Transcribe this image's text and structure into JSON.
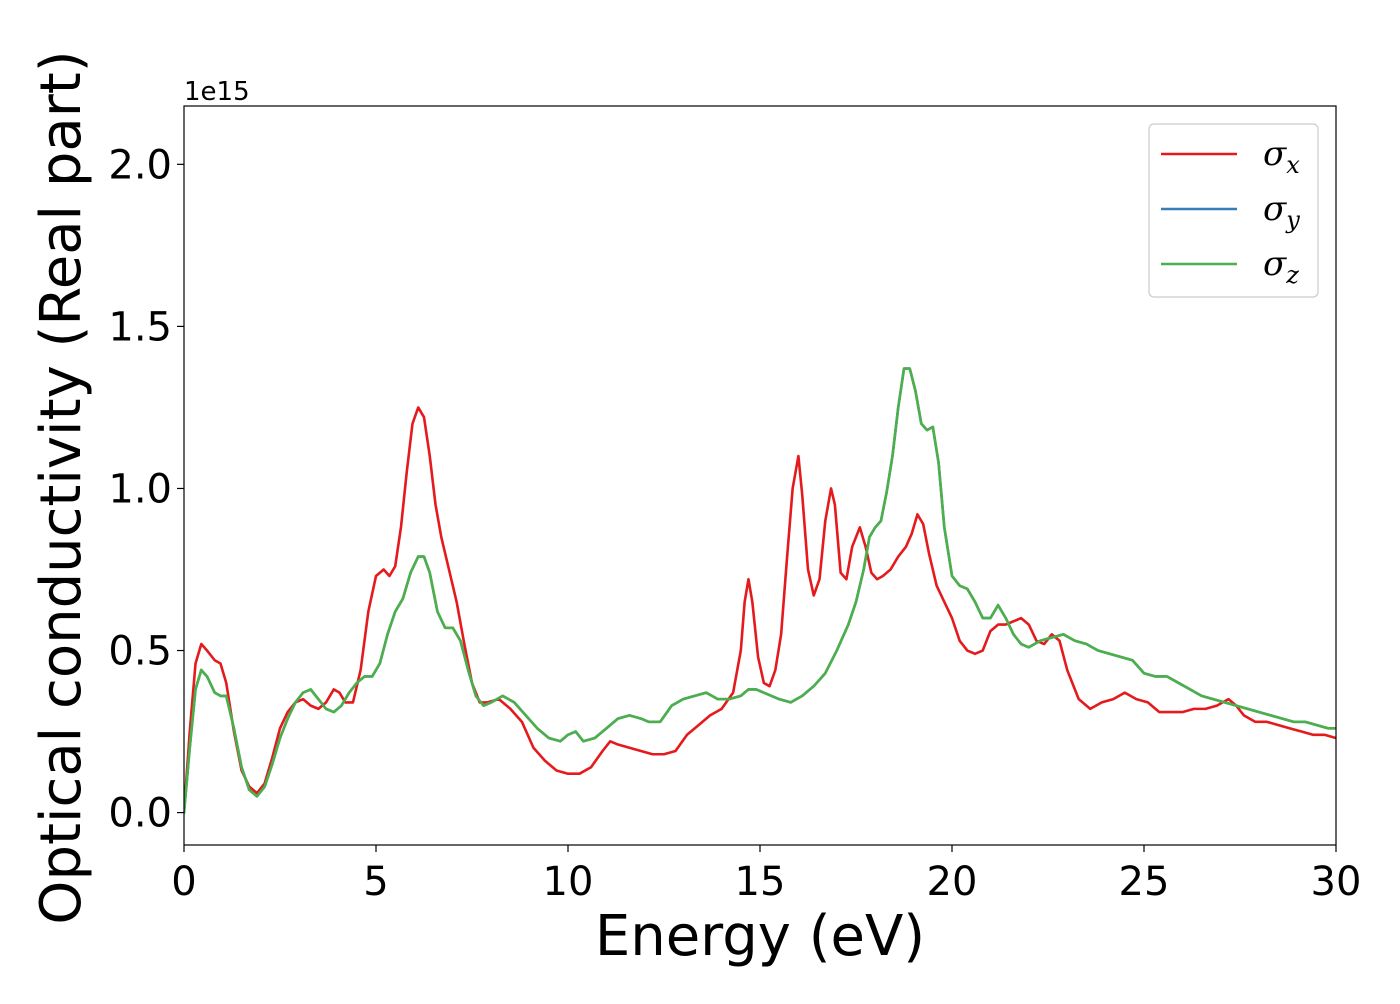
{
  "chart_data": {
    "type": "line",
    "xlabel": "Energy (eV)",
    "ylabel": "Optical conductivity (Real part)",
    "y_offset_label": "1e15",
    "xlim": [
      0,
      30
    ],
    "ylim": [
      -0.1,
      2.18
    ],
    "x_ticks": [
      0,
      5,
      10,
      15,
      20,
      25,
      30
    ],
    "x_tick_labels": [
      "0",
      "5",
      "10",
      "15",
      "20",
      "25",
      "30"
    ],
    "y_ticks": [
      0.0,
      0.5,
      1.0,
      1.5,
      2.0
    ],
    "y_tick_labels": [
      "0.0",
      "0.5",
      "1.0",
      "1.5",
      "2.0"
    ],
    "grid": false,
    "legend_position": "top-right",
    "series": [
      {
        "name": "σx",
        "legend_symbol": "σ",
        "legend_subscript": "x",
        "color": "#e41a1c",
        "x": [
          0,
          0.15,
          0.3,
          0.45,
          0.6,
          0.8,
          0.95,
          1.1,
          1.3,
          1.5,
          1.7,
          1.9,
          2.1,
          2.3,
          2.5,
          2.7,
          2.9,
          3.1,
          3.3,
          3.5,
          3.7,
          3.9,
          4.05,
          4.2,
          4.4,
          4.6,
          4.8,
          5.0,
          5.2,
          5.35,
          5.5,
          5.65,
          5.8,
          5.95,
          6.1,
          6.25,
          6.4,
          6.55,
          6.7,
          6.9,
          7.1,
          7.3,
          7.5,
          7.7,
          7.9,
          8.2,
          8.5,
          8.8,
          9.1,
          9.4,
          9.7,
          10.0,
          10.3,
          10.6,
          10.9,
          11.1,
          11.3,
          11.6,
          11.9,
          12.2,
          12.5,
          12.8,
          13.1,
          13.4,
          13.7,
          14.0,
          14.3,
          14.5,
          14.6,
          14.7,
          14.8,
          14.95,
          15.1,
          15.25,
          15.4,
          15.55,
          15.7,
          15.85,
          16.0,
          16.1,
          16.25,
          16.4,
          16.55,
          16.7,
          16.85,
          16.95,
          17.1,
          17.25,
          17.4,
          17.6,
          17.75,
          17.9,
          18.05,
          18.2,
          18.4,
          18.6,
          18.8,
          18.95,
          19.1,
          19.25,
          19.4,
          19.6,
          19.8,
          20.0,
          20.2,
          20.4,
          20.6,
          20.8,
          21.0,
          21.2,
          21.4,
          21.6,
          21.8,
          22.0,
          22.2,
          22.4,
          22.6,
          22.8,
          23.0,
          23.3,
          23.6,
          23.9,
          24.2,
          24.5,
          24.8,
          25.1,
          25.4,
          25.7,
          26.0,
          26.3,
          26.6,
          26.9,
          27.2,
          27.4,
          27.6,
          27.9,
          28.2,
          28.5,
          28.8,
          29.1,
          29.4,
          29.7,
          30.0
        ],
        "y": [
          0.0,
          0.25,
          0.46,
          0.52,
          0.5,
          0.47,
          0.46,
          0.4,
          0.25,
          0.13,
          0.08,
          0.06,
          0.09,
          0.17,
          0.26,
          0.31,
          0.34,
          0.35,
          0.33,
          0.32,
          0.34,
          0.38,
          0.37,
          0.34,
          0.34,
          0.44,
          0.62,
          0.73,
          0.75,
          0.73,
          0.76,
          0.88,
          1.05,
          1.2,
          1.25,
          1.22,
          1.1,
          0.95,
          0.85,
          0.75,
          0.65,
          0.52,
          0.4,
          0.34,
          0.34,
          0.35,
          0.32,
          0.28,
          0.2,
          0.16,
          0.13,
          0.12,
          0.12,
          0.14,
          0.19,
          0.22,
          0.21,
          0.2,
          0.19,
          0.18,
          0.18,
          0.19,
          0.24,
          0.27,
          0.3,
          0.32,
          0.37,
          0.5,
          0.65,
          0.72,
          0.65,
          0.48,
          0.4,
          0.39,
          0.44,
          0.55,
          0.78,
          1.0,
          1.1,
          0.98,
          0.75,
          0.67,
          0.72,
          0.9,
          1.0,
          0.95,
          0.74,
          0.72,
          0.82,
          0.88,
          0.82,
          0.74,
          0.72,
          0.73,
          0.75,
          0.79,
          0.82,
          0.86,
          0.92,
          0.89,
          0.8,
          0.7,
          0.65,
          0.6,
          0.53,
          0.5,
          0.49,
          0.5,
          0.56,
          0.58,
          0.58,
          0.59,
          0.6,
          0.58,
          0.53,
          0.52,
          0.55,
          0.53,
          0.44,
          0.35,
          0.32,
          0.34,
          0.35,
          0.37,
          0.35,
          0.34,
          0.31,
          0.31,
          0.31,
          0.32,
          0.32,
          0.33,
          0.35,
          0.33,
          0.3,
          0.28,
          0.28,
          0.27,
          0.26,
          0.25,
          0.24,
          0.24,
          0.23
        ]
      },
      {
        "name": "σy",
        "legend_symbol": "σ",
        "legend_subscript": "y",
        "color": "#377eb8",
        "x": [
          0,
          0.15,
          0.3,
          0.45,
          0.6,
          0.8,
          0.95,
          1.1,
          1.3,
          1.5,
          1.7,
          1.9,
          2.1,
          2.3,
          2.5,
          2.7,
          2.9,
          3.1,
          3.3,
          3.5,
          3.7,
          3.9,
          4.1,
          4.3,
          4.5,
          4.7,
          4.9,
          5.1,
          5.3,
          5.5,
          5.7,
          5.9,
          6.1,
          6.25,
          6.4,
          6.6,
          6.8,
          7.0,
          7.2,
          7.4,
          7.6,
          7.8,
          8.0,
          8.3,
          8.6,
          8.9,
          9.2,
          9.5,
          9.8,
          10.0,
          10.2,
          10.4,
          10.7,
          11.0,
          11.3,
          11.6,
          11.9,
          12.1,
          12.4,
          12.7,
          13.0,
          13.3,
          13.6,
          13.9,
          14.2,
          14.5,
          14.7,
          14.9,
          15.1,
          15.3,
          15.5,
          15.8,
          16.1,
          16.4,
          16.7,
          17.0,
          17.3,
          17.5,
          17.7,
          17.85,
          18.0,
          18.15,
          18.3,
          18.45,
          18.6,
          18.75,
          18.9,
          19.05,
          19.2,
          19.35,
          19.5,
          19.65,
          19.8,
          20.0,
          20.2,
          20.4,
          20.6,
          20.8,
          21.0,
          21.2,
          21.4,
          21.6,
          21.8,
          22.0,
          22.3,
          22.6,
          22.9,
          23.2,
          23.5,
          23.8,
          24.1,
          24.4,
          24.7,
          25.0,
          25.3,
          25.6,
          25.9,
          26.2,
          26.5,
          26.8,
          27.1,
          27.4,
          27.7,
          28.0,
          28.3,
          28.6,
          28.9,
          29.2,
          29.5,
          29.8,
          30.0
        ],
        "y": [
          0.0,
          0.2,
          0.38,
          0.44,
          0.42,
          0.37,
          0.36,
          0.36,
          0.26,
          0.14,
          0.07,
          0.05,
          0.08,
          0.15,
          0.23,
          0.29,
          0.34,
          0.37,
          0.38,
          0.35,
          0.32,
          0.31,
          0.33,
          0.37,
          0.4,
          0.42,
          0.42,
          0.46,
          0.55,
          0.62,
          0.66,
          0.74,
          0.79,
          0.79,
          0.74,
          0.62,
          0.57,
          0.57,
          0.53,
          0.44,
          0.36,
          0.33,
          0.34,
          0.36,
          0.34,
          0.3,
          0.26,
          0.23,
          0.22,
          0.24,
          0.25,
          0.22,
          0.23,
          0.26,
          0.29,
          0.3,
          0.29,
          0.28,
          0.28,
          0.33,
          0.35,
          0.36,
          0.37,
          0.35,
          0.35,
          0.36,
          0.38,
          0.38,
          0.37,
          0.36,
          0.35,
          0.34,
          0.36,
          0.39,
          0.43,
          0.5,
          0.58,
          0.65,
          0.75,
          0.85,
          0.88,
          0.9,
          0.99,
          1.1,
          1.25,
          1.37,
          1.37,
          1.3,
          1.2,
          1.18,
          1.19,
          1.08,
          0.88,
          0.73,
          0.7,
          0.69,
          0.65,
          0.6,
          0.6,
          0.64,
          0.6,
          0.55,
          0.52,
          0.51,
          0.53,
          0.54,
          0.55,
          0.53,
          0.52,
          0.5,
          0.49,
          0.48,
          0.47,
          0.43,
          0.42,
          0.42,
          0.4,
          0.38,
          0.36,
          0.35,
          0.34,
          0.33,
          0.32,
          0.31,
          0.3,
          0.29,
          0.28,
          0.28,
          0.27,
          0.26,
          0.26
        ]
      },
      {
        "name": "σz",
        "legend_symbol": "σ",
        "legend_subscript": "z",
        "color": "#4daf4a",
        "x": [
          0,
          0.15,
          0.3,
          0.45,
          0.6,
          0.8,
          0.95,
          1.1,
          1.3,
          1.5,
          1.7,
          1.9,
          2.1,
          2.3,
          2.5,
          2.7,
          2.9,
          3.1,
          3.3,
          3.5,
          3.7,
          3.9,
          4.1,
          4.3,
          4.5,
          4.7,
          4.9,
          5.1,
          5.3,
          5.5,
          5.7,
          5.9,
          6.1,
          6.25,
          6.4,
          6.6,
          6.8,
          7.0,
          7.2,
          7.4,
          7.6,
          7.8,
          8.0,
          8.3,
          8.6,
          8.9,
          9.2,
          9.5,
          9.8,
          10.0,
          10.2,
          10.4,
          10.7,
          11.0,
          11.3,
          11.6,
          11.9,
          12.1,
          12.4,
          12.7,
          13.0,
          13.3,
          13.6,
          13.9,
          14.2,
          14.5,
          14.7,
          14.9,
          15.1,
          15.3,
          15.5,
          15.8,
          16.1,
          16.4,
          16.7,
          17.0,
          17.3,
          17.5,
          17.7,
          17.85,
          18.0,
          18.15,
          18.3,
          18.45,
          18.6,
          18.75,
          18.9,
          19.05,
          19.2,
          19.35,
          19.5,
          19.65,
          19.8,
          20.0,
          20.2,
          20.4,
          20.6,
          20.8,
          21.0,
          21.2,
          21.4,
          21.6,
          21.8,
          22.0,
          22.3,
          22.6,
          22.9,
          23.2,
          23.5,
          23.8,
          24.1,
          24.4,
          24.7,
          25.0,
          25.3,
          25.6,
          25.9,
          26.2,
          26.5,
          26.8,
          27.1,
          27.4,
          27.7,
          28.0,
          28.3,
          28.6,
          28.9,
          29.2,
          29.5,
          29.8,
          30.0
        ],
        "y": [
          0.0,
          0.2,
          0.38,
          0.44,
          0.42,
          0.37,
          0.36,
          0.36,
          0.26,
          0.14,
          0.07,
          0.05,
          0.08,
          0.15,
          0.23,
          0.29,
          0.34,
          0.37,
          0.38,
          0.35,
          0.32,
          0.31,
          0.33,
          0.37,
          0.4,
          0.42,
          0.42,
          0.46,
          0.55,
          0.62,
          0.66,
          0.74,
          0.79,
          0.79,
          0.74,
          0.62,
          0.57,
          0.57,
          0.53,
          0.44,
          0.36,
          0.33,
          0.34,
          0.36,
          0.34,
          0.3,
          0.26,
          0.23,
          0.22,
          0.24,
          0.25,
          0.22,
          0.23,
          0.26,
          0.29,
          0.3,
          0.29,
          0.28,
          0.28,
          0.33,
          0.35,
          0.36,
          0.37,
          0.35,
          0.35,
          0.36,
          0.38,
          0.38,
          0.37,
          0.36,
          0.35,
          0.34,
          0.36,
          0.39,
          0.43,
          0.5,
          0.58,
          0.65,
          0.75,
          0.85,
          0.88,
          0.9,
          0.99,
          1.1,
          1.25,
          1.37,
          1.37,
          1.3,
          1.2,
          1.18,
          1.19,
          1.08,
          0.88,
          0.73,
          0.7,
          0.69,
          0.65,
          0.6,
          0.6,
          0.64,
          0.6,
          0.55,
          0.52,
          0.51,
          0.53,
          0.54,
          0.55,
          0.53,
          0.52,
          0.5,
          0.49,
          0.48,
          0.47,
          0.43,
          0.42,
          0.42,
          0.4,
          0.38,
          0.36,
          0.35,
          0.34,
          0.33,
          0.32,
          0.31,
          0.3,
          0.29,
          0.28,
          0.28,
          0.27,
          0.26,
          0.26
        ]
      }
    ]
  }
}
